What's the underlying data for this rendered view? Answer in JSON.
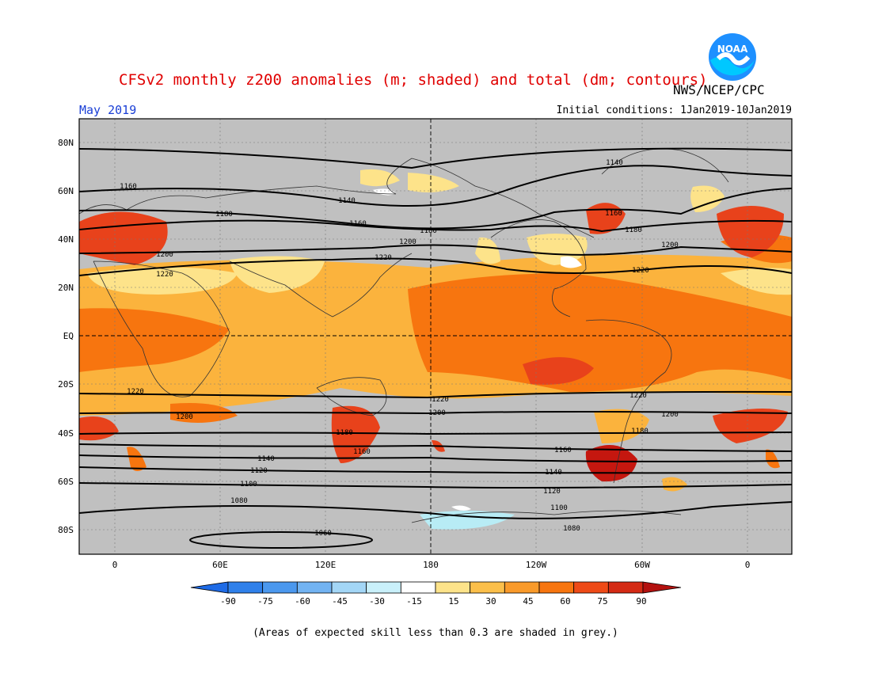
{
  "header": {
    "title": "CFSv2 monthly z200 anomalies (m; shaded) and total (dm; contours)",
    "agency": "NWS/NCEP/CPC",
    "valid_month": "May 2019",
    "initial_conditions": "Initial conditions: 1Jan2019-10Jan2019"
  },
  "logo": {
    "icon": "noaa-logo",
    "text": "NOAA"
  },
  "map": {
    "lat_labels": [
      "80N",
      "60N",
      "40N",
      "20N",
      "EQ",
      "20S",
      "40S",
      "60S",
      "80S"
    ],
    "lon_labels": [
      "0",
      "60E",
      "120E",
      "180",
      "120W",
      "60W",
      "0"
    ],
    "contour_labels": [
      {
        "v": "1160"
      },
      {
        "v": "1140"
      },
      {
        "v": "1180"
      },
      {
        "v": "1160"
      },
      {
        "v": "1180"
      },
      {
        "v": "1200"
      },
      {
        "v": "1200"
      },
      {
        "v": "1220"
      },
      {
        "v": "1220"
      },
      {
        "v": "1140"
      },
      {
        "v": "1160"
      },
      {
        "v": "1180"
      },
      {
        "v": "1200"
      },
      {
        "v": "1220"
      },
      {
        "v": "1220"
      },
      {
        "v": "1220"
      },
      {
        "v": "1220"
      },
      {
        "v": "1200"
      },
      {
        "v": "1200"
      },
      {
        "v": "1200"
      },
      {
        "v": "1180"
      },
      {
        "v": "1180"
      },
      {
        "v": "1160"
      },
      {
        "v": "1160"
      },
      {
        "v": "1140"
      },
      {
        "v": "1140"
      },
      {
        "v": "1120"
      },
      {
        "v": "1120"
      },
      {
        "v": "1100"
      },
      {
        "v": "1100"
      },
      {
        "v": "1080"
      },
      {
        "v": "1080"
      },
      {
        "v": "1060"
      }
    ],
    "colors": {
      "grey": "#c0c0c0",
      "c15_30": "#fde38a",
      "c30_45": "#fbb33d",
      "c45_60": "#f7750f",
      "c60_75": "#e8421b",
      "c75_90": "#c5170f",
      "neg15_30": "#b8ecf5"
    }
  },
  "colorbar": {
    "ticks": [
      "-90",
      "-75",
      "-60",
      "-45",
      "-30",
      "-15",
      "15",
      "30",
      "45",
      "60",
      "75",
      "90"
    ],
    "colors": [
      "#1e6be6",
      "#2f80ea",
      "#4b98ee",
      "#72b3f2",
      "#a3d6f6",
      "#c9f0fa",
      "#ffffff",
      "#fde38a",
      "#fbbf4a",
      "#f99a2a",
      "#f7750f",
      "#ee4a17",
      "#d42a14",
      "#b3110f"
    ]
  },
  "footnote": "(Areas of expected skill less than 0.3 are shaded in grey.)"
}
